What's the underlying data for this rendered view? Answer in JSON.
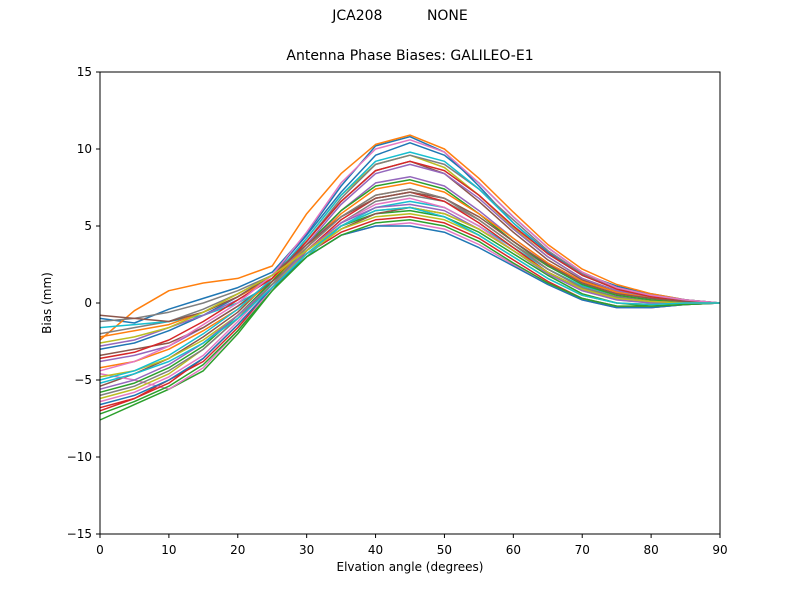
{
  "figure": {
    "suptitle": "JCA208          NONE"
  },
  "chart_data": {
    "type": "line",
    "title": "Antenna Phase Biases: GALILEO-E1",
    "xlabel": "Elvation angle (degrees)",
    "ylabel": "Bias (mm)",
    "xlim": [
      0,
      90
    ],
    "ylim": [
      -15,
      15
    ],
    "xticks": [
      0,
      10,
      20,
      30,
      40,
      50,
      60,
      70,
      80,
      90
    ],
    "yticks": [
      -15,
      -10,
      -5,
      0,
      5,
      10,
      15
    ],
    "xtick_labels": [
      "0",
      "10",
      "20",
      "30",
      "40",
      "50",
      "60",
      "70",
      "80",
      "90"
    ],
    "ytick_labels": [
      "−15",
      "−10",
      "−5",
      "0",
      "5",
      "10",
      "15"
    ],
    "grid": false,
    "legend": "none",
    "x": [
      0,
      5,
      10,
      15,
      20,
      25,
      30,
      35,
      40,
      45,
      50,
      55,
      60,
      65,
      70,
      75,
      80,
      85,
      90
    ],
    "colors": [
      "#1f77b4",
      "#ff7f0e",
      "#2ca02c",
      "#d62728",
      "#9467bd",
      "#8c564b",
      "#e377c2",
      "#7f7f7f",
      "#bcbd22",
      "#17becf"
    ],
    "series": [
      {
        "values": [
          -1.0,
          -1.3,
          -0.4,
          0.3,
          1.0,
          2.0,
          4.5,
          7.6,
          10.2,
          10.8,
          9.8,
          7.6,
          5.2,
          3.3,
          1.9,
          1.1,
          0.6,
          0.2,
          0.0
        ]
      },
      {
        "values": [
          -2.4,
          -0.5,
          0.8,
          1.3,
          1.6,
          2.4,
          5.8,
          8.4,
          10.3,
          10.9,
          10.0,
          8.1,
          5.9,
          3.8,
          2.2,
          1.2,
          0.6,
          0.2,
          0.0
        ]
      },
      {
        "values": [
          -7.6,
          -6.6,
          -5.6,
          -4.4,
          -2.0,
          0.8,
          3.4,
          5.0,
          5.8,
          6.0,
          5.6,
          4.6,
          3.2,
          1.8,
          0.6,
          0.0,
          -0.2,
          -0.1,
          0.0
        ]
      },
      {
        "values": [
          -6.8,
          -6.2,
          -5.0,
          -3.8,
          -1.6,
          1.0,
          3.2,
          4.6,
          5.4,
          5.6,
          5.2,
          4.2,
          2.8,
          1.4,
          0.3,
          -0.2,
          -0.3,
          -0.1,
          0.0
        ]
      },
      {
        "values": [
          -3.8,
          -3.4,
          -2.8,
          -1.6,
          -0.2,
          1.4,
          3.6,
          6.0,
          7.8,
          8.2,
          7.6,
          6.0,
          4.2,
          2.6,
          1.4,
          0.7,
          0.3,
          0.1,
          0.0
        ]
      },
      {
        "values": [
          -5.4,
          -4.6,
          -3.6,
          -2.2,
          -0.6,
          1.6,
          4.0,
          6.6,
          8.6,
          9.2,
          8.4,
          6.6,
          4.6,
          2.8,
          1.5,
          0.7,
          0.3,
          0.1,
          0.0
        ]
      },
      {
        "values": [
          -4.6,
          -5.0,
          -5.6,
          -4.2,
          -1.8,
          1.0,
          3.0,
          4.4,
          5.0,
          5.2,
          4.8,
          3.8,
          2.5,
          1.2,
          0.2,
          -0.3,
          -0.3,
          -0.1,
          0.0
        ]
      },
      {
        "values": [
          -2.0,
          -1.6,
          -1.2,
          -0.4,
          0.6,
          1.8,
          3.4,
          5.2,
          6.6,
          7.0,
          6.6,
          5.4,
          3.8,
          2.4,
          1.2,
          0.6,
          0.3,
          0.1,
          0.0
        ]
      },
      {
        "values": [
          -6.2,
          -5.6,
          -4.6,
          -3.0,
          -1.0,
          1.4,
          4.2,
          7.0,
          9.0,
          9.6,
          8.8,
          7.0,
          4.9,
          3.0,
          1.6,
          0.8,
          0.4,
          0.1,
          0.0
        ]
      },
      {
        "values": [
          -1.6,
          -1.4,
          -1.2,
          -0.8,
          0.0,
          1.2,
          3.0,
          5.0,
          6.2,
          6.6,
          6.2,
          5.0,
          3.6,
          2.2,
          1.1,
          0.5,
          0.2,
          0.1,
          0.0
        ]
      },
      {
        "values": [
          -3.0,
          -2.6,
          -1.8,
          -0.8,
          0.4,
          1.8,
          4.4,
          7.2,
          9.6,
          10.4,
          9.6,
          7.8,
          5.6,
          3.6,
          2.0,
          1.0,
          0.5,
          0.2,
          0.0
        ]
      },
      {
        "values": [
          -4.2,
          -3.8,
          -3.0,
          -1.8,
          -0.4,
          1.4,
          3.6,
          5.6,
          7.0,
          7.4,
          6.8,
          5.4,
          3.8,
          2.2,
          1.0,
          0.4,
          0.1,
          0.0,
          0.0
        ]
      },
      {
        "values": [
          -5.8,
          -5.2,
          -4.2,
          -2.8,
          -0.8,
          1.4,
          3.8,
          6.0,
          7.6,
          8.0,
          7.4,
          5.8,
          4.0,
          2.4,
          1.2,
          0.5,
          0.2,
          0.1,
          0.0
        ]
      },
      {
        "values": [
          -7.0,
          -6.2,
          -5.2,
          -3.6,
          -1.4,
          1.0,
          3.4,
          5.4,
          6.8,
          7.2,
          6.6,
          5.2,
          3.6,
          2.0,
          0.9,
          0.3,
          0.1,
          0.0,
          0.0
        ]
      },
      {
        "values": [
          -2.8,
          -2.4,
          -1.6,
          -0.8,
          0.2,
          1.6,
          3.8,
          6.4,
          8.4,
          9.0,
          8.4,
          6.8,
          4.8,
          3.0,
          1.6,
          0.8,
          0.4,
          0.1,
          0.0
        ]
      },
      {
        "values": [
          -3.4,
          -3.0,
          -2.6,
          -1.6,
          -0.2,
          1.4,
          3.2,
          4.8,
          5.8,
          6.2,
          5.8,
          4.8,
          3.4,
          2.0,
          0.9,
          0.3,
          0.1,
          0.0,
          0.0
        ]
      },
      {
        "values": [
          -6.4,
          -5.8,
          -4.8,
          -3.4,
          -1.2,
          1.2,
          3.4,
          5.2,
          6.4,
          6.8,
          6.2,
          5.0,
          3.4,
          1.9,
          0.8,
          0.2,
          0.0,
          0.0,
          0.0
        ]
      },
      {
        "values": [
          -1.2,
          -1.0,
          -0.6,
          0.0,
          0.8,
          1.8,
          4.0,
          6.8,
          9.0,
          9.6,
          9.0,
          7.4,
          5.4,
          3.4,
          1.9,
          1.0,
          0.5,
          0.2,
          0.0
        ]
      },
      {
        "values": [
          -4.8,
          -4.4,
          -3.6,
          -2.4,
          -0.8,
          1.2,
          3.2,
          4.8,
          5.6,
          5.8,
          5.4,
          4.4,
          3.0,
          1.6,
          0.5,
          0.0,
          -0.1,
          0.0,
          0.0
        ]
      },
      {
        "values": [
          -5.0,
          -4.4,
          -3.4,
          -2.0,
          -0.4,
          1.6,
          4.2,
          7.0,
          9.2,
          9.8,
          9.2,
          7.4,
          5.2,
          3.2,
          1.8,
          0.9,
          0.4,
          0.1,
          0.0
        ]
      },
      {
        "values": [
          -6.6,
          -6.0,
          -5.0,
          -3.6,
          -1.4,
          1.0,
          3.0,
          4.4,
          5.0,
          5.0,
          4.6,
          3.6,
          2.4,
          1.2,
          0.2,
          -0.3,
          -0.3,
          -0.1,
          0.0
        ]
      },
      {
        "values": [
          -2.2,
          -1.8,
          -1.4,
          -0.6,
          0.4,
          1.6,
          3.6,
          5.8,
          7.4,
          7.8,
          7.2,
          5.8,
          4.2,
          2.6,
          1.4,
          0.7,
          0.3,
          0.1,
          0.0
        ]
      },
      {
        "values": [
          -7.2,
          -6.4,
          -5.4,
          -4.0,
          -1.8,
          0.8,
          3.0,
          4.4,
          5.2,
          5.4,
          5.0,
          4.0,
          2.6,
          1.3,
          0.3,
          -0.2,
          -0.2,
          -0.1,
          0.0
        ]
      },
      {
        "values": [
          -3.6,
          -3.2,
          -2.4,
          -1.2,
          0.2,
          1.6,
          4.0,
          6.6,
          8.6,
          9.2,
          8.6,
          7.0,
          5.0,
          3.2,
          1.8,
          0.9,
          0.4,
          0.1,
          0.0
        ]
      },
      {
        "values": [
          -5.6,
          -5.0,
          -4.0,
          -2.6,
          -0.8,
          1.2,
          3.4,
          5.2,
          6.2,
          6.4,
          6.0,
          4.8,
          3.4,
          1.9,
          0.8,
          0.2,
          0.0,
          0.0,
          0.0
        ]
      },
      {
        "values": [
          -0.8,
          -1.0,
          -1.2,
          -0.6,
          0.4,
          1.8,
          3.8,
          5.6,
          6.8,
          7.2,
          6.8,
          5.6,
          4.0,
          2.5,
          1.3,
          0.6,
          0.3,
          0.1,
          0.0
        ]
      },
      {
        "values": [
          -4.4,
          -3.8,
          -2.8,
          -1.4,
          0.0,
          1.8,
          4.6,
          7.8,
          10.0,
          10.6,
          9.8,
          7.8,
          5.6,
          3.6,
          2.0,
          1.0,
          0.5,
          0.2,
          0.0
        ]
      },
      {
        "values": [
          -6.0,
          -5.4,
          -4.4,
          -3.0,
          -1.0,
          1.2,
          3.6,
          5.6,
          7.0,
          7.4,
          6.8,
          5.4,
          3.8,
          2.2,
          1.0,
          0.4,
          0.1,
          0.0,
          0.0
        ]
      },
      {
        "values": [
          -2.6,
          -2.2,
          -1.6,
          -0.6,
          0.6,
          1.8,
          3.4,
          5.0,
          6.0,
          6.2,
          5.8,
          4.8,
          3.4,
          2.0,
          0.9,
          0.3,
          0.1,
          0.0,
          0.0
        ]
      },
      {
        "values": [
          -5.2,
          -4.6,
          -3.8,
          -2.6,
          -1.0,
          1.0,
          3.2,
          5.0,
          6.0,
          6.2,
          5.6,
          4.4,
          3.0,
          1.6,
          0.5,
          0.0,
          -0.1,
          0.0,
          0.0
        ]
      }
    ]
  }
}
